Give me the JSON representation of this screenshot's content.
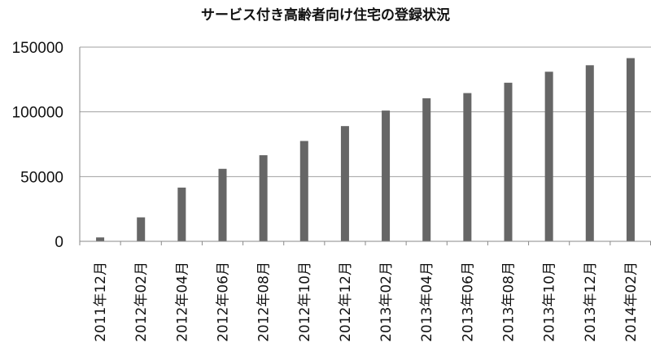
{
  "chart_data": {
    "type": "bar",
    "title": "サービス付き高齢者向け住宅の登録状況",
    "categories": [
      "2011年12月",
      "2012年02月",
      "2012年04月",
      "2012年06月",
      "2012年08月",
      "2012年10月",
      "2012年12月",
      "2013年02月",
      "2013年04月",
      "2013年06月",
      "2013年08月",
      "2013年10月",
      "2013年12月",
      "2014年02月"
    ],
    "values": [
      3000,
      18500,
      41500,
      56000,
      66500,
      77500,
      89000,
      101000,
      110500,
      114500,
      122500,
      131000,
      136000,
      141500
    ],
    "ylim": [
      0,
      150000
    ],
    "yticks": [
      0,
      50000,
      100000,
      150000
    ],
    "ytick_labels": [
      "0",
      "50000",
      "100000",
      "150000"
    ],
    "grid": true,
    "legend": "none",
    "colors": {
      "bar": "#666666",
      "grid": "#a0a0a0",
      "axis": "#8a8a8a"
    }
  }
}
